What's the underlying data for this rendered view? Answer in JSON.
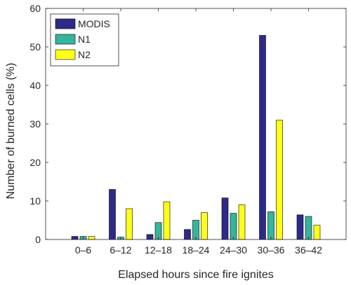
{
  "chart_data": {
    "type": "bar",
    "title": "",
    "xlabel": "Elapsed hours since fire ignites",
    "ylabel": "Number of burned cells (%)",
    "ylim": [
      0,
      60
    ],
    "yticks": [
      "0",
      "10",
      "20",
      "30",
      "40",
      "50",
      "60"
    ],
    "categories": [
      "0–6",
      "6–12",
      "12–18",
      "18–24",
      "24–30",
      "30–36",
      "36–42"
    ],
    "series": [
      {
        "name": "MODIS",
        "color": "#2e2a8a",
        "values": [
          0.8,
          13.0,
          1.3,
          2.6,
          10.8,
          53.0,
          6.4
        ]
      },
      {
        "name": "N1",
        "color": "#35b59b",
        "values": [
          0.8,
          0.6,
          4.4,
          5.0,
          6.8,
          7.2,
          6.0
        ]
      },
      {
        "name": "N2",
        "color": "#ffff1a",
        "values": [
          0.8,
          8.0,
          9.8,
          7.0,
          9.0,
          31.0,
          3.7
        ]
      }
    ],
    "legend_position": "top-left",
    "grid": false
  }
}
